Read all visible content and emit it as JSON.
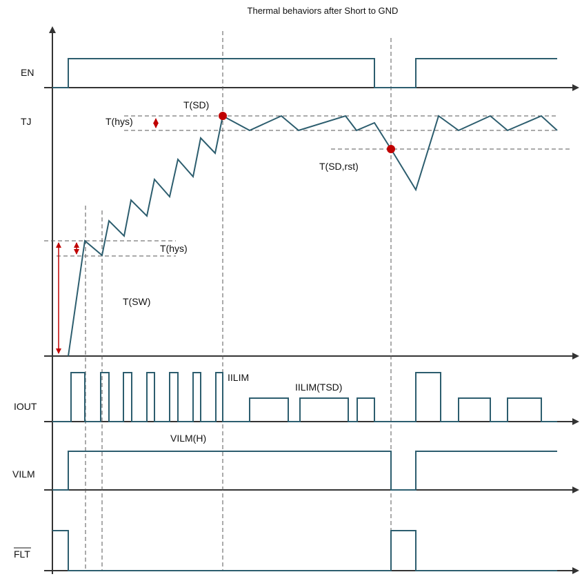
{
  "title": "Thermal behaviors after Short to GND",
  "signals": {
    "en": "EN",
    "tj": "TJ",
    "iout": "IOUT",
    "vilm": "VILM",
    "flt": "FLT"
  },
  "annotations": {
    "tsd": "T(SD)",
    "thys_top": "T(hys)",
    "thys_mid": "T(hys)",
    "tsd_rst": "T(SD,rst)",
    "tsw": "T(SW)",
    "iilim": "IILIM",
    "iilim_tsd": "IILIM(TSD)",
    "vilm_h": "VILM(H)"
  },
  "colors": {
    "signal": "#2c5d6e",
    "marker": "#c00000",
    "axis": "#333333"
  }
}
